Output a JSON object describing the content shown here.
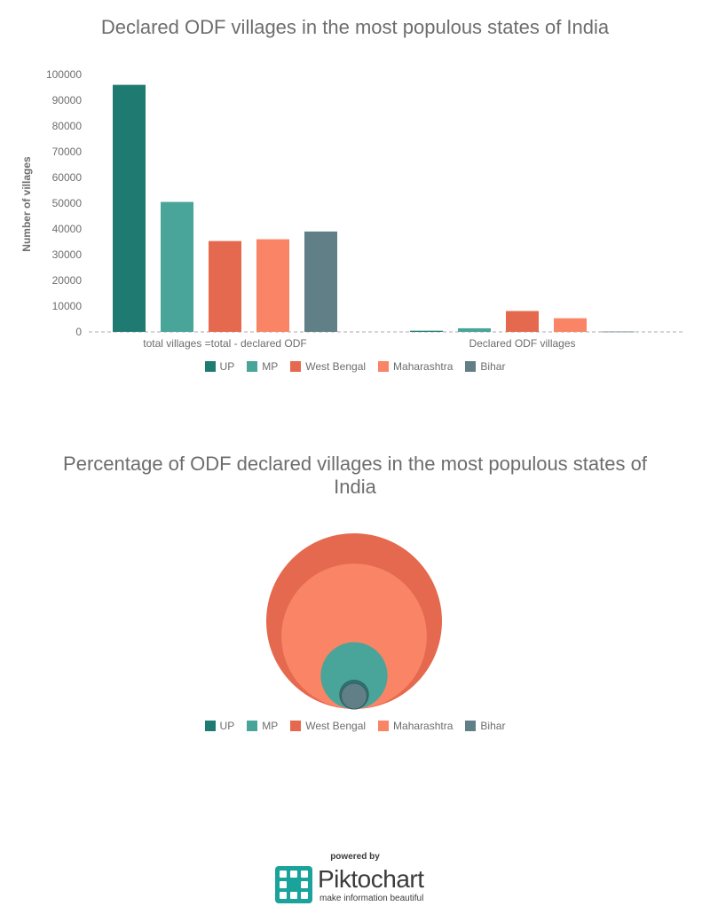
{
  "chart_data": [
    {
      "type": "bar",
      "title": "Declared ODF villages in the most populous states of India",
      "ylabel": "Number of villages",
      "xlabel": "",
      "ylim": [
        0,
        100000
      ],
      "yticks": [
        0,
        10000,
        20000,
        30000,
        40000,
        50000,
        60000,
        70000,
        80000,
        90000,
        100000
      ],
      "categories": [
        "total villages =total - declared ODF",
        "Declared ODF villages"
      ],
      "series": [
        {
          "name": "UP",
          "color": "#1f7b72",
          "values": [
            96000,
            450
          ]
        },
        {
          "name": "MP",
          "color": "#49a49a",
          "values": [
            50500,
            1400
          ]
        },
        {
          "name": "West Bengal",
          "color": "#e5694e",
          "values": [
            35300,
            8100
          ]
        },
        {
          "name": "Maharashtra",
          "color": "#f98466",
          "values": [
            36000,
            5300
          ]
        },
        {
          "name": "Bihar",
          "color": "#617f86",
          "values": [
            39000,
            150
          ]
        }
      ],
      "legend": "bottom",
      "grid": false
    },
    {
      "type": "bubble",
      "title": "Percentage of ODF declared villages in the most populous states of India",
      "series": [
        {
          "name": "UP",
          "color": "#1f7b72",
          "value": 0.5
        },
        {
          "name": "MP",
          "color": "#49a49a",
          "value": 2.7
        },
        {
          "name": "West Bengal",
          "color": "#e5694e",
          "value": 18.7
        },
        {
          "name": "Maharashtra",
          "color": "#f98466",
          "value": 12.8
        },
        {
          "name": "Bihar",
          "color": "#617f86",
          "value": 0.4
        }
      ],
      "legend": "bottom"
    }
  ],
  "footer": {
    "powered_by": "powered by",
    "brand_prefix": "Pikto",
    "brand_suffix": "chart",
    "tagline": "make information beautiful",
    "icon": "piktochart-logo-icon"
  }
}
